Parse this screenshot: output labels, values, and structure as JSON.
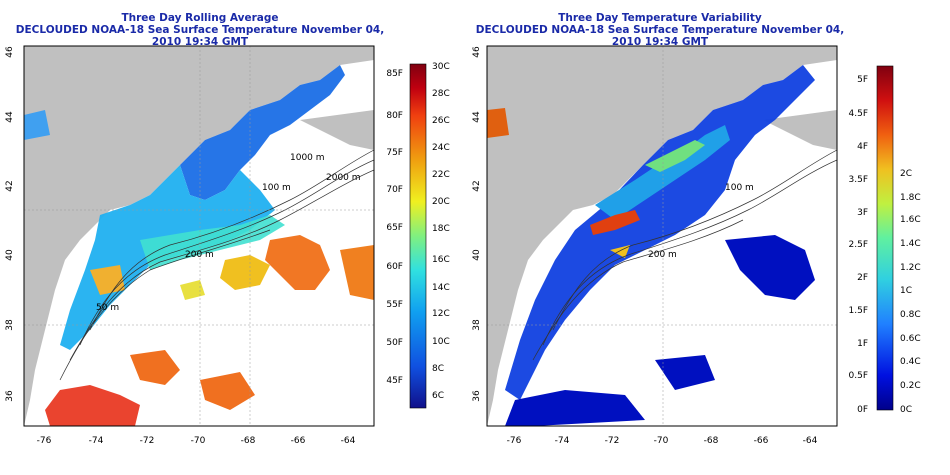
{
  "left": {
    "title_line1": "Three Day Rolling Average",
    "title_line2": "DECLOUDED NOAA-18 Sea Surface Temperature November 04, 2010 19:34 GMT",
    "x_ticks": [
      "-76",
      "-74",
      "-72",
      "-70",
      "-68",
      "-66",
      "-64"
    ],
    "y_ticks": [
      "36",
      "38",
      "40",
      "42",
      "44",
      "46"
    ],
    "contour_labels": [
      "100 m",
      "2000 m",
      "200 m",
      "1000 m",
      "50 m"
    ],
    "colorbar_f": [
      "85F",
      "80F",
      "75F",
      "70F",
      "65F",
      "60F",
      "55F",
      "50F",
      "45F"
    ],
    "colorbar_c": [
      "30C",
      "28C",
      "26C",
      "24C",
      "22C",
      "20C",
      "18C",
      "16C",
      "14C",
      "12C",
      "10C",
      "8C",
      "6C"
    ]
  },
  "right": {
    "title_line1": "Three Day Temperature Variability",
    "title_line2": "DECLOUDED NOAA-18 Sea Surface Temperature November 04, 2010 19:34 GMT",
    "x_ticks": [
      "-76",
      "-74",
      "-72",
      "-70",
      "-68",
      "-66",
      "-64"
    ],
    "y_ticks": [
      "36",
      "38",
      "40",
      "42",
      "44",
      "46"
    ],
    "contour_labels": [
      "100 m",
      "200 m"
    ],
    "colorbar_f": [
      "5F",
      "4.5F",
      "4F",
      "3.5F",
      "3F",
      "2.5F",
      "2F",
      "1.5F",
      "1F",
      "0.5F",
      "0F"
    ],
    "colorbar_c": [
      "2C",
      "1.8C",
      "1.6C",
      "1.4C",
      "1.2C",
      "1C",
      "0.8C",
      "0.6C",
      "0.4C",
      "0.2C",
      "0C"
    ]
  },
  "colors": {
    "title": "#1a2aa8",
    "land": "#c0c0c0",
    "ocean_missing": "#ffffff",
    "sst_scale": [
      "#10108a",
      "#1050e0",
      "#10a0f0",
      "#30e0e0",
      "#80f080",
      "#f0f020",
      "#f0a010",
      "#f04010",
      "#c00010",
      "#800010"
    ],
    "var_scale": [
      "#00008a",
      "#0010e0",
      "#2080ff",
      "#30d0e0",
      "#60f0a0",
      "#c0f040",
      "#f0c020",
      "#f06010",
      "#d01010",
      "#800010"
    ]
  }
}
